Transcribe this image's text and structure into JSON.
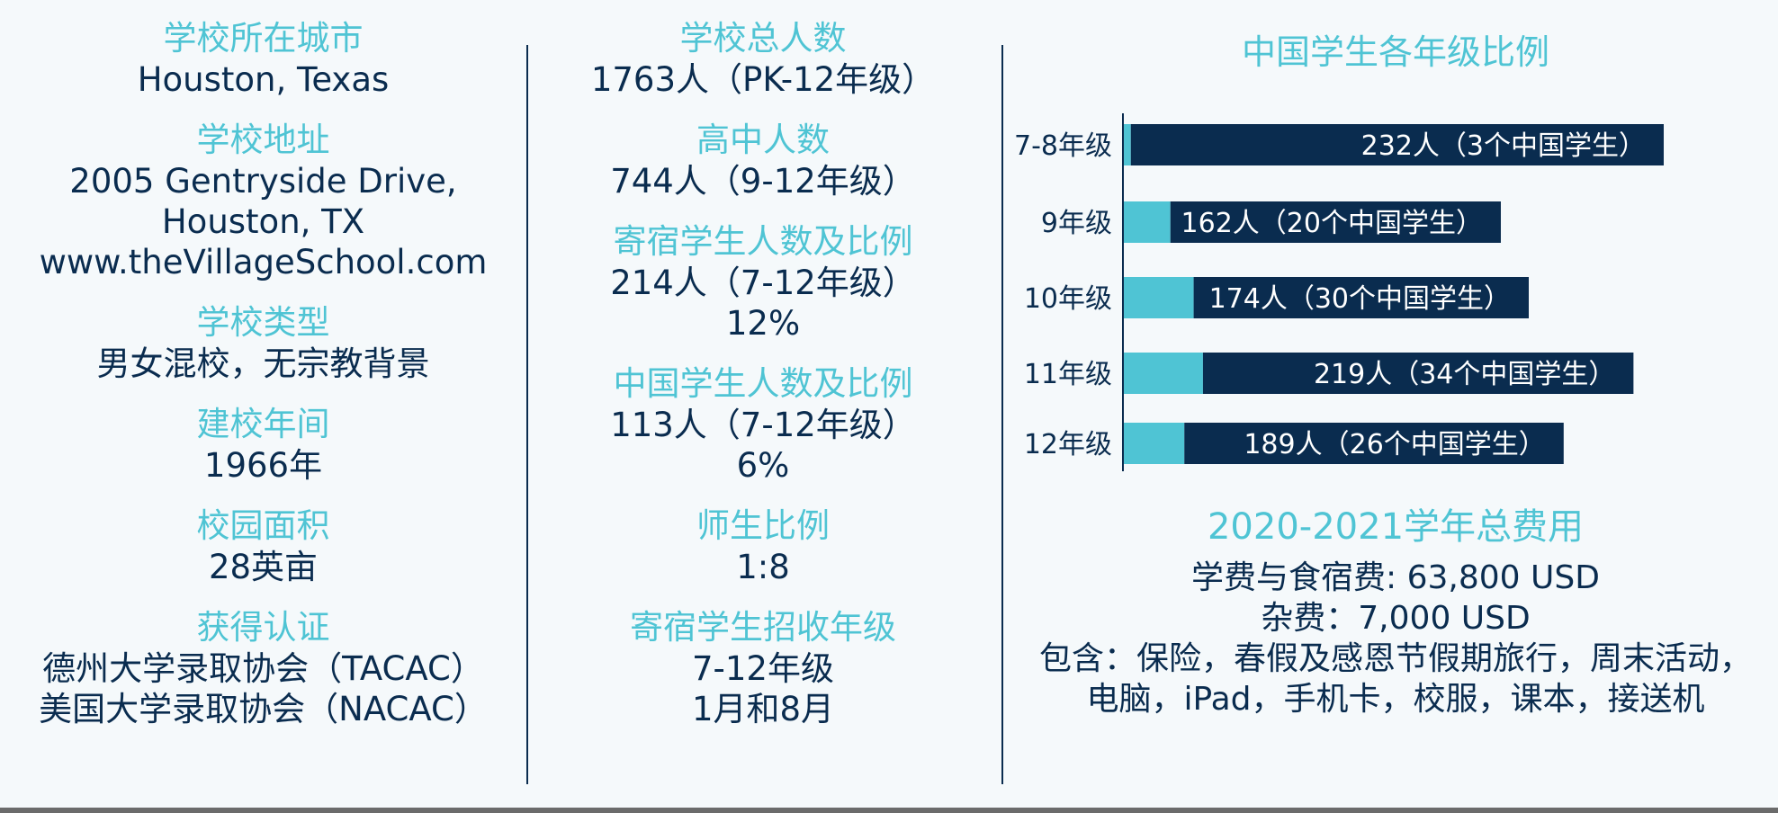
{
  "left": [
    {
      "label": "学校所在城市",
      "lines": [
        "Houston, Texas"
      ]
    },
    {
      "label": "学校地址",
      "lines": [
        "2005 Gentryside Drive,",
        "Houston, TX",
        "www.theVillageSchool.com"
      ]
    },
    {
      "label": "学校类型",
      "lines": [
        "男女混校，无宗教背景"
      ]
    },
    {
      "label": "建校年间",
      "lines": [
        "1966年"
      ]
    },
    {
      "label": "校园面积",
      "lines": [
        "28英亩"
      ]
    },
    {
      "label": "获得认证",
      "lines": [
        "德州大学录取协会（TACAC）",
        "美国大学录取协会（NACAC）"
      ]
    }
  ],
  "middle": [
    {
      "label": "学校总人数",
      "lines": [
        "1763人（PK-12年级）"
      ]
    },
    {
      "label": "高中人数",
      "lines": [
        "744人（9-12年级）"
      ]
    },
    {
      "label": "寄宿学生人数及比例",
      "lines": [
        "214人（7-12年级）",
        "12%"
      ]
    },
    {
      "label": "中国学生人数及比例",
      "lines": [
        "113人（7-12年级）",
        "6%"
      ]
    },
    {
      "label": "师生比例",
      "lines": [
        "1:8"
      ]
    },
    {
      "label": "寄宿学生招收年级",
      "lines": [
        "7-12年级",
        "1月和8月"
      ]
    }
  ],
  "colors": {
    "accent": "#4fc4d4",
    "navy": "#0a2c4f"
  },
  "chart_data": {
    "type": "bar",
    "orientation": "horizontal",
    "stacked": true,
    "title": "中国学生各年级比例",
    "categories": [
      "7-8年级",
      "9年级",
      "10年级",
      "11年级",
      "12年级"
    ],
    "series": [
      {
        "values": [
          3,
          20,
          30,
          34,
          26
        ],
        "color": "#4fc4d4"
      },
      {
        "values": [
          229,
          142,
          144,
          185,
          163
        ],
        "color": "#0a2c4f"
      }
    ],
    "totals": [
      232,
      162,
      174,
      219,
      189
    ],
    "data_labels": [
      "232人（3个中国学生）",
      "162人（20个中国学生）",
      "174人（30个中国学生）",
      "219人（34个中国学生）",
      "189人（26个中国学生）"
    ],
    "xlim": [
      0,
      260
    ],
    "grid": false,
    "legend": "none"
  },
  "fees": {
    "title": "2020-2021学年总费用",
    "lines": [
      "学费与食宿费: 63,800 USD",
      "杂费：7,000 USD",
      "包含：保险，春假及感恩节假期旅行，周末活动，",
      "电脑，iPad，手机卡，校服，课本，接送机"
    ]
  }
}
